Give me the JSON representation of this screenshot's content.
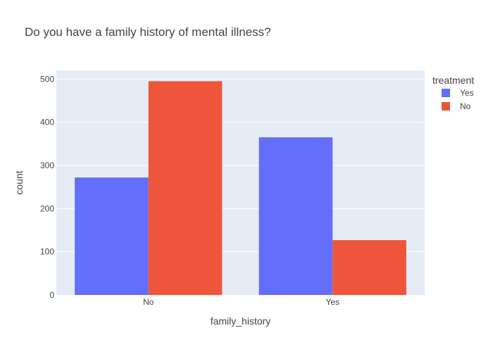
{
  "chart_data": {
    "type": "bar",
    "title": "Do you have a family history of mental illness?",
    "xlabel": "family_history",
    "ylabel": "count",
    "categories": [
      "No",
      "Yes"
    ],
    "series": [
      {
        "name": "Yes",
        "values": [
          272,
          365
        ],
        "color": "#636efa"
      },
      {
        "name": "No",
        "values": [
          495,
          127
        ],
        "color": "#ef553b"
      }
    ],
    "ylim": [
      0,
      520
    ],
    "yticks": [
      0,
      100,
      200,
      300,
      400,
      500
    ],
    "grid": true,
    "legend": {
      "title": "treatment",
      "position": "top-right"
    },
    "barmode": "group"
  }
}
